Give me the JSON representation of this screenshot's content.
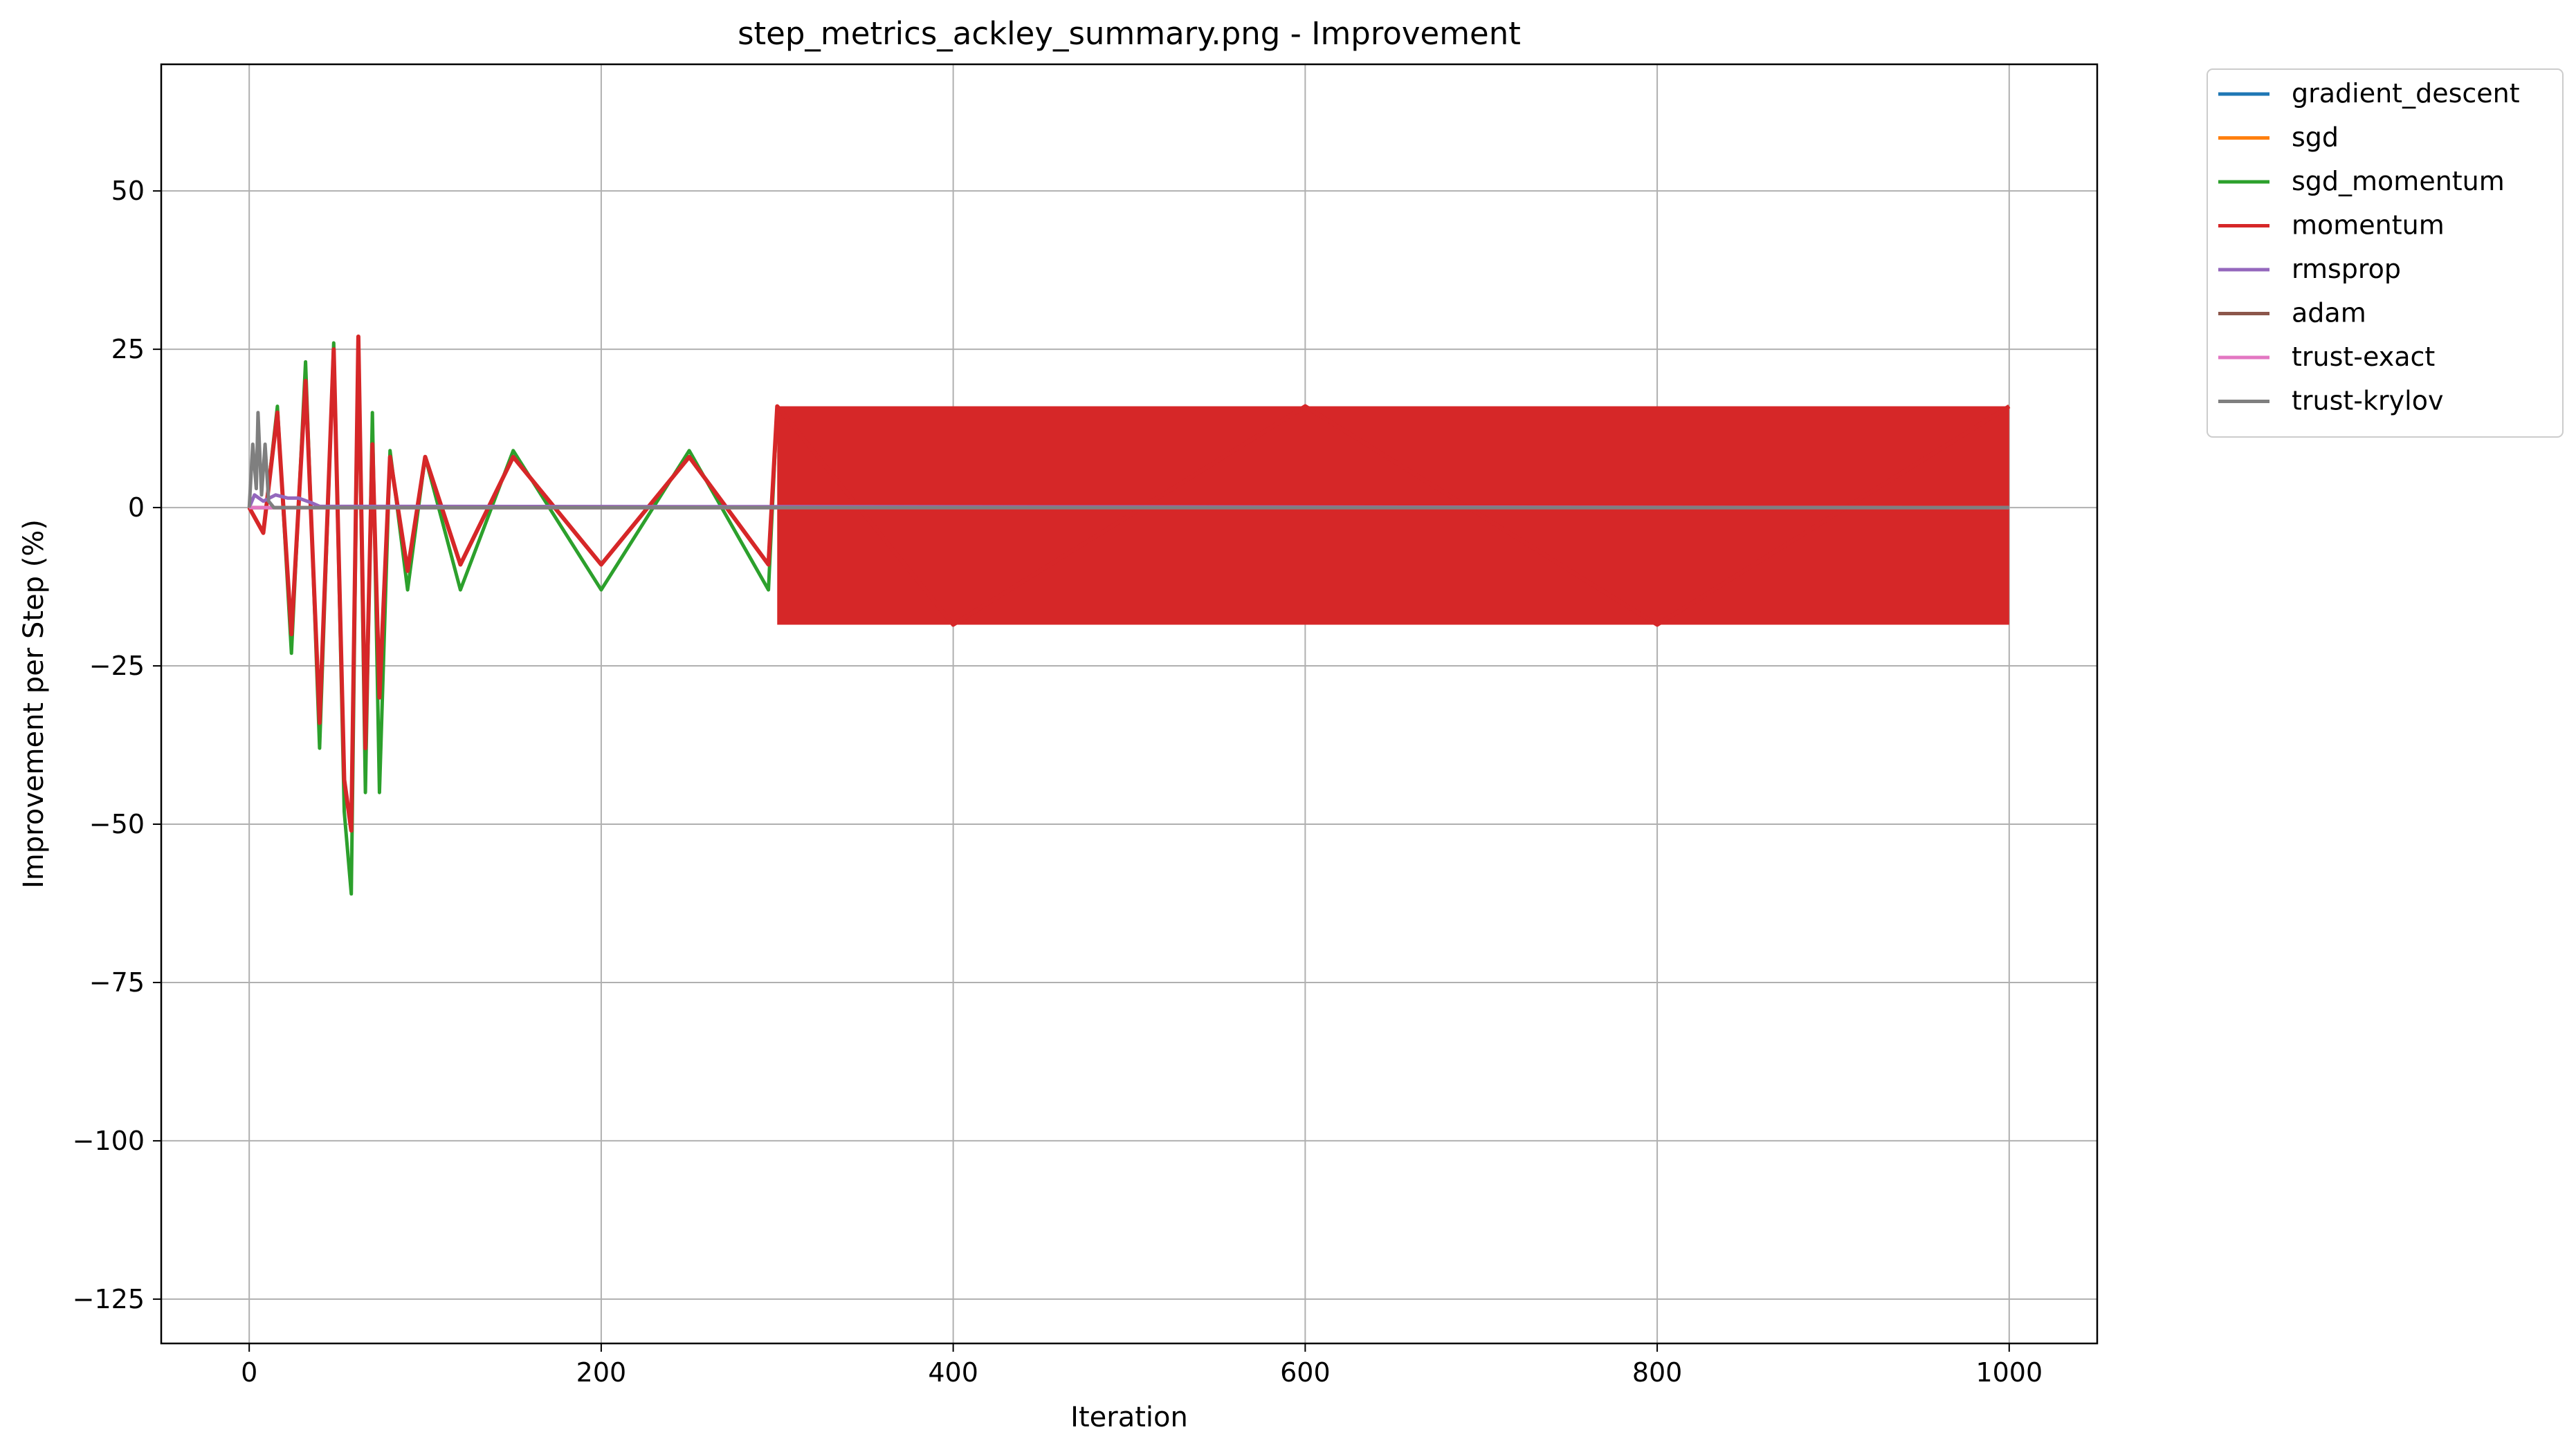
{
  "chart_data": {
    "type": "line",
    "title": "step_metrics_ackley_summary.png - Improvement",
    "xlabel": "Iteration",
    "ylabel": "Improvement per Step (%)",
    "xlim": [
      -50,
      1050
    ],
    "ylim": [
      -132,
      70
    ],
    "xticks": [
      0,
      200,
      400,
      600,
      800,
      1000
    ],
    "xtick_labels": [
      "0",
      "200",
      "400",
      "600",
      "800",
      "1000"
    ],
    "yticks": [
      50,
      25,
      0,
      -25,
      -50,
      -75,
      -100,
      -125
    ],
    "ytick_labels": [
      "50",
      "25",
      "0",
      "−25",
      "−50",
      "−75",
      "−100",
      "−125"
    ],
    "grid": true,
    "legend_position": "outside-top-right",
    "series": [
      {
        "name": "gradient_descent",
        "color": "#1f77b4",
        "x": [
          0,
          1000
        ],
        "y": [
          0,
          0
        ]
      },
      {
        "name": "sgd",
        "color": "#ff7f0e",
        "x": [
          0,
          1000
        ],
        "y": [
          0,
          0
        ]
      },
      {
        "name": "sgd_momentum",
        "color": "#2ca02c",
        "x": [
          0,
          8,
          16,
          24,
          32,
          40,
          48,
          54,
          58,
          62,
          66,
          70,
          74,
          80,
          90,
          100,
          120,
          150,
          200,
          250,
          295,
          300,
          400,
          600,
          800,
          1000
        ],
        "y": [
          0,
          -4,
          16,
          -23,
          23,
          -38,
          26,
          -48,
          -61,
          27,
          -45,
          15,
          -45,
          9,
          -13,
          8,
          -13,
          9,
          -13,
          9,
          -13,
          16,
          -18.5,
          16,
          -18.5,
          16
        ]
      },
      {
        "name": "momentum",
        "color": "#d62728",
        "x": [
          0,
          8,
          16,
          24,
          32,
          40,
          48,
          54,
          58,
          62,
          66,
          70,
          74,
          80,
          90,
          100,
          120,
          150,
          200,
          250,
          295,
          300,
          400,
          600,
          800,
          1000
        ],
        "y": [
          0,
          -4,
          15,
          -20,
          20,
          -34,
          25,
          -43,
          -51,
          27,
          -38,
          10,
          -30,
          8,
          -10,
          8,
          -9,
          8,
          -9,
          8,
          -9,
          16,
          -18.5,
          16,
          -18.5,
          16
        ],
        "oscillation_band": {
          "x_start": 300,
          "x_end": 1000,
          "y_max": 16,
          "y_min": -18.5
        }
      },
      {
        "name": "rmsprop",
        "color": "#9467bd",
        "x": [
          0,
          3,
          8,
          15,
          22,
          28,
          35,
          40,
          1000
        ],
        "y": [
          0,
          2,
          1,
          2,
          1.5,
          1.5,
          0.8,
          0.2,
          0
        ]
      },
      {
        "name": "adam",
        "color": "#8c564b",
        "x": [
          0,
          1000
        ],
        "y": [
          0,
          0
        ]
      },
      {
        "name": "trust-exact",
        "color": "#e377c2",
        "x": [
          0,
          1000
        ],
        "y": [
          0,
          0
        ]
      },
      {
        "name": "trust-krylov",
        "color": "#7f7f7f",
        "x": [
          0,
          2,
          4,
          5,
          7,
          9,
          11,
          14,
          1000
        ],
        "y": [
          0,
          10,
          3,
          15,
          2,
          10,
          1,
          0,
          0
        ]
      }
    ]
  }
}
